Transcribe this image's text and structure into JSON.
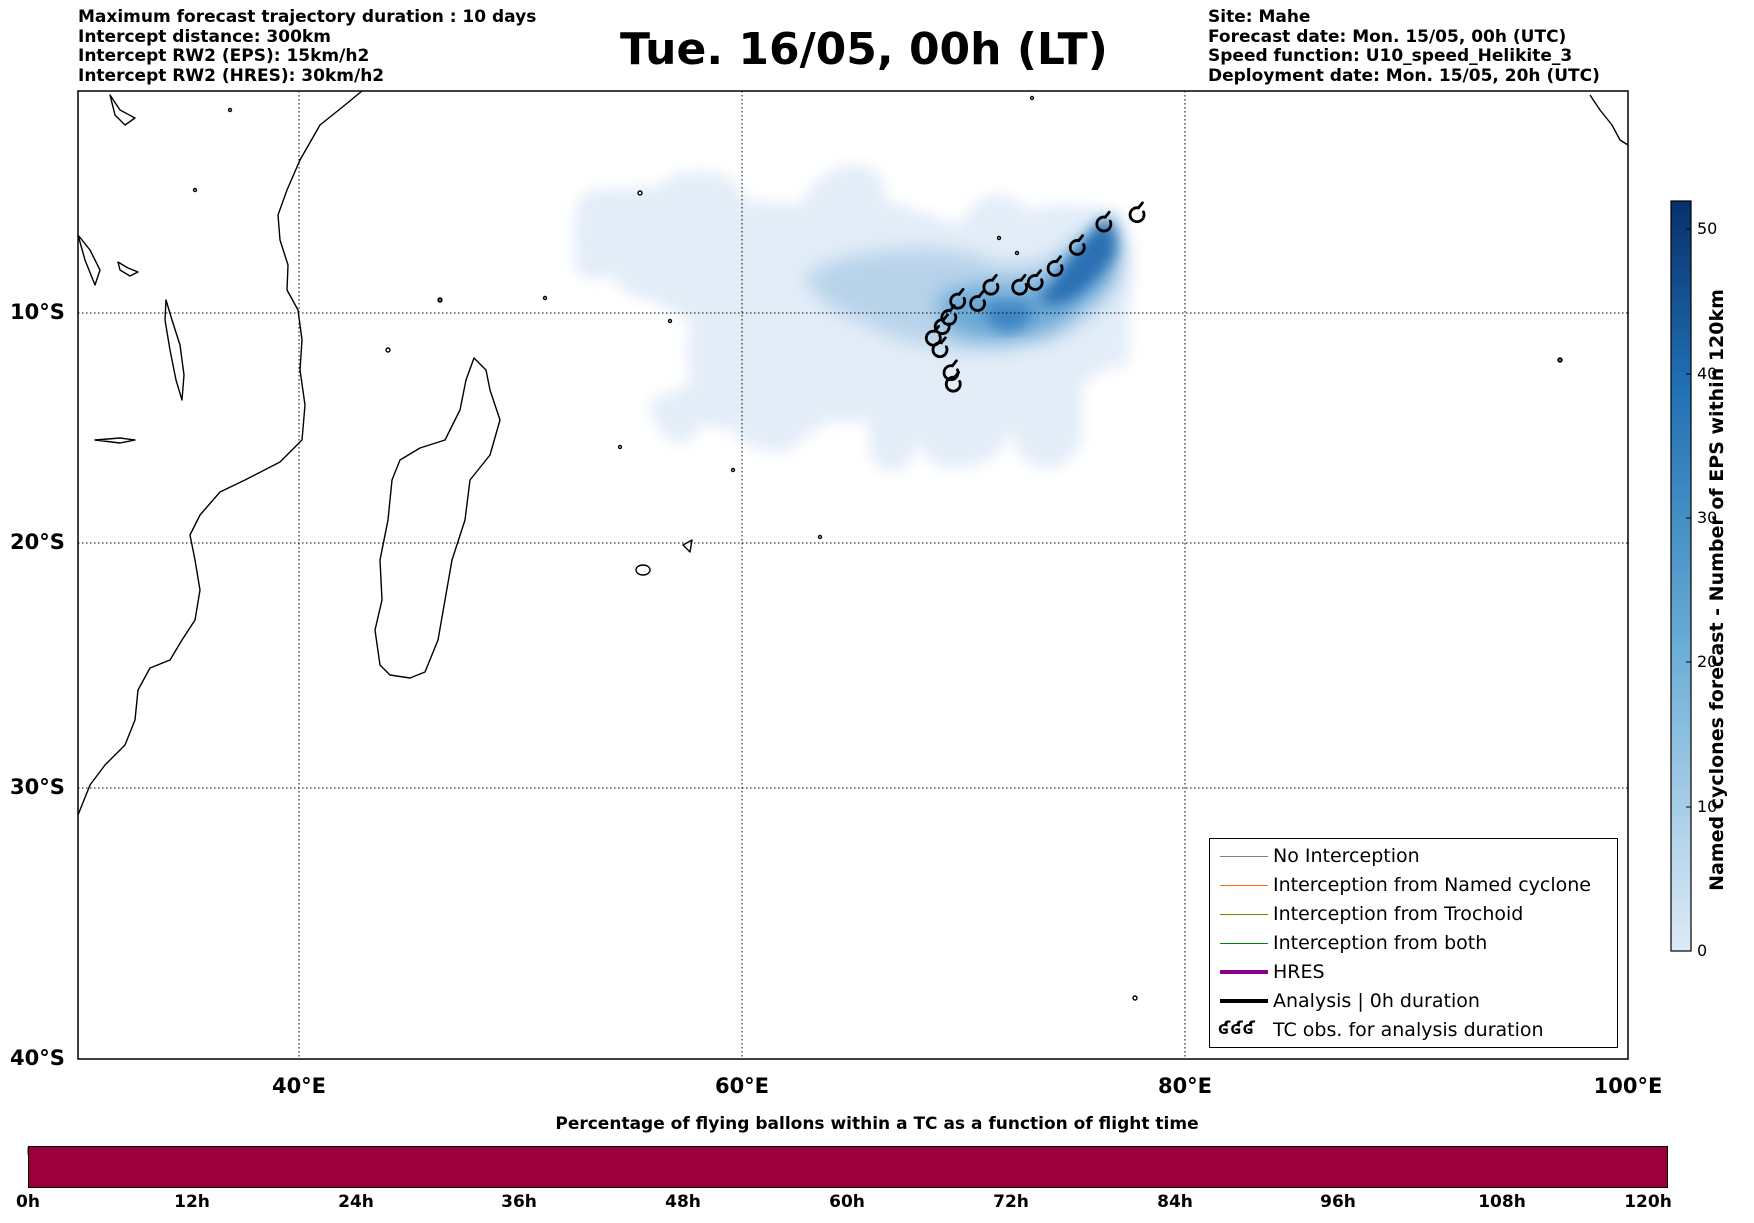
{
  "header_left": [
    "Maximum forecast trajectory duration : 10 days",
    "Intercept distance: 300km",
    "Intercept RW2 (EPS):  15km/h2",
    "Intercept RW2 (HRES): 30km/h2"
  ],
  "header_right": [
    "Site: Mahe",
    "Forecast date: Mon. 15/05, 00h (UTC)",
    "Speed function: U10_speed_Helikite_3",
    "Deployment date: Mon. 15/05, 20h (UTC)"
  ],
  "title": "Tue. 16/05, 00h (LT)",
  "map": {
    "lat_labels": [
      "10°S",
      "20°S",
      "30°S",
      "40°S"
    ],
    "lon_labels": [
      "40°E",
      "60°E",
      "80°E",
      "100°E"
    ],
    "extent": {
      "lon_min": 30,
      "lon_max": 100,
      "lat_top": -0.5,
      "lat_bottom": -40
    }
  },
  "colorbar": {
    "title": "Named cyclones forecast - Number of EPS within 120km",
    "ticks": [
      "0",
      "10",
      "20",
      "30",
      "40",
      "50"
    ],
    "min": 0,
    "max": 52,
    "color_low": "#deebf7",
    "color_high": "#08306b"
  },
  "legend": {
    "items": [
      {
        "label": "No Interception",
        "color": "#808080",
        "style": "thin"
      },
      {
        "label": "Interception from Named cyclone",
        "color": "#ff6a00",
        "style": "thin"
      },
      {
        "label": "Interception from Trochoid",
        "color": "#808000",
        "style": "thin"
      },
      {
        "label": "Interception from both",
        "color": "#008000",
        "style": "thin"
      },
      {
        "label": "HRES",
        "color": "#8b008b",
        "style": "thick"
      },
      {
        "label": "Analysis | 0h duration",
        "color": "#000000",
        "style": "thick"
      },
      {
        "label": "TC obs. for analysis duration",
        "color": "#000000",
        "style": "symbol"
      }
    ],
    "symbol_text": "ʛʛʛ"
  },
  "chart_data": {
    "type": "heatmap",
    "description_units": "Number of EPS members within 120km",
    "tc_obs_positions": [
      {
        "lon": 77.8,
        "lat": -5.8
      },
      {
        "lon": 76.3,
        "lat": -6.2
      },
      {
        "lon": 75.1,
        "lat": -7.2
      },
      {
        "lon": 74.1,
        "lat": -8.1
      },
      {
        "lon": 73.2,
        "lat": -8.7
      },
      {
        "lon": 72.5,
        "lat": -8.9
      },
      {
        "lon": 71.2,
        "lat": -8.9
      },
      {
        "lon": 70.6,
        "lat": -9.6
      },
      {
        "lon": 69.7,
        "lat": -9.5
      },
      {
        "lon": 69.3,
        "lat": -10.2
      },
      {
        "lon": 69.0,
        "lat": -10.6
      },
      {
        "lon": 68.6,
        "lat": -11.1
      },
      {
        "lon": 68.9,
        "lat": -11.6
      },
      {
        "lon": 69.4,
        "lat": -12.6
      },
      {
        "lon": 69.5,
        "lat": -13.1
      }
    ]
  },
  "bottom": {
    "title": "Percentage of flying ballons within a TC as a function of flight time",
    "bar_color": "#9b003d",
    "bar_value_percent": 100,
    "time_ticks": [
      "0h",
      "12h",
      "24h",
      "36h",
      "48h",
      "60h",
      "72h",
      "84h",
      "96h",
      "108h",
      "120h"
    ]
  }
}
